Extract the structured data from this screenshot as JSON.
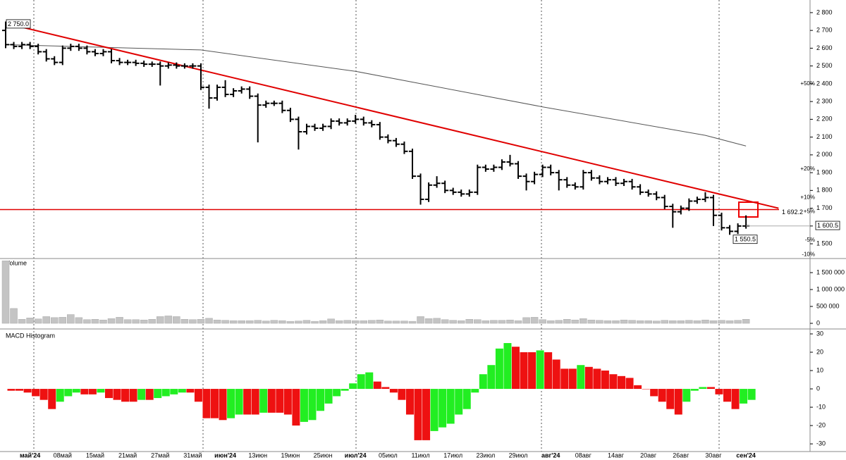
{
  "chart_data": [
    {
      "type": "ohlc",
      "color": "#000000",
      "open": [
        2700,
        2620,
        2610,
        2620,
        2610,
        2580,
        2540,
        2520,
        2600,
        2610,
        2600,
        2580,
        2570,
        2580,
        2530,
        2520,
        2520,
        2515,
        2510,
        2510,
        2500,
        2505,
        2500,
        2500,
        2500,
        2380,
        2320,
        2380,
        2340,
        2360,
        2370,
        2330,
        2280,
        2290,
        2290,
        2250,
        2200,
        2130,
        2160,
        2150,
        2160,
        2190,
        2180,
        2190,
        2200,
        2180,
        2170,
        2100,
        2080,
        2060,
        2020,
        1880,
        1750,
        1830,
        1840,
        1800,
        1790,
        1780,
        1790,
        1930,
        1920,
        1930,
        1960,
        1950,
        1880,
        1850,
        1890,
        1930,
        1900,
        1860,
        1830,
        1820,
        1900,
        1870,
        1850,
        1860,
        1840,
        1850,
        1820,
        1790,
        1780,
        1760,
        1710,
        1680,
        1700,
        1740,
        1750,
        1760,
        1660,
        1590,
        1570,
        1600
      ],
      "high": [
        2750,
        2635,
        2635,
        2635,
        2625,
        2595,
        2555,
        2615,
        2625,
        2625,
        2615,
        2595,
        2595,
        2595,
        2545,
        2535,
        2535,
        2530,
        2525,
        2525,
        2520,
        2520,
        2515,
        2515,
        2515,
        2395,
        2395,
        2420,
        2375,
        2385,
        2385,
        2345,
        2305,
        2305,
        2305,
        2265,
        2215,
        2175,
        2175,
        2175,
        2205,
        2205,
        2205,
        2225,
        2215,
        2195,
        2185,
        2115,
        2095,
        2075,
        2035,
        1895,
        1845,
        1880,
        1855,
        1815,
        1805,
        1805,
        1945,
        1945,
        1945,
        1975,
        2000,
        1965,
        1895,
        1905,
        1945,
        1945,
        1915,
        1875,
        1845,
        1915,
        1915,
        1885,
        1875,
        1875,
        1865,
        1865,
        1835,
        1805,
        1795,
        1775,
        1725,
        1715,
        1755,
        1765,
        1790,
        1775,
        1675,
        1605,
        1615,
        1660
      ],
      "low": [
        2600,
        2595,
        2595,
        2595,
        2565,
        2525,
        2505,
        2505,
        2585,
        2585,
        2565,
        2555,
        2555,
        2515,
        2505,
        2505,
        2500,
        2495,
        2495,
        2390,
        2485,
        2485,
        2485,
        2485,
        2365,
        2260,
        2305,
        2325,
        2325,
        2345,
        2315,
        2070,
        2265,
        2275,
        2235,
        2185,
        2030,
        2115,
        2135,
        2135,
        2145,
        2165,
        2165,
        2175,
        2165,
        2155,
        2085,
        2065,
        2045,
        2005,
        1865,
        1720,
        1735,
        1815,
        1785,
        1775,
        1765,
        1765,
        1775,
        1905,
        1905,
        1915,
        1935,
        1865,
        1800,
        1835,
        1875,
        1885,
        1800,
        1815,
        1805,
        1805,
        1855,
        1835,
        1835,
        1825,
        1825,
        1805,
        1775,
        1765,
        1745,
        1695,
        1590,
        1665,
        1685,
        1725,
        1735,
        1600,
        1575,
        1550.5,
        1555,
        1585
      ],
      "close": [
        2620,
        2610,
        2620,
        2610,
        2580,
        2540,
        2520,
        2600,
        2610,
        2600,
        2580,
        2570,
        2580,
        2530,
        2520,
        2520,
        2515,
        2510,
        2510,
        2500,
        2505,
        2500,
        2500,
        2500,
        2380,
        2320,
        2380,
        2340,
        2360,
        2370,
        2330,
        2280,
        2290,
        2290,
        2250,
        2200,
        2130,
        2160,
        2150,
        2160,
        2190,
        2180,
        2190,
        2200,
        2180,
        2170,
        2100,
        2080,
        2060,
        2020,
        1880,
        1750,
        1830,
        1840,
        1800,
        1790,
        1780,
        1790,
        1930,
        1920,
        1930,
        1960,
        1950,
        1880,
        1850,
        1890,
        1930,
        1900,
        1860,
        1830,
        1820,
        1900,
        1870,
        1850,
        1860,
        1840,
        1850,
        1820,
        1790,
        1780,
        1760,
        1710,
        1680,
        1700,
        1740,
        1750,
        1760,
        1660,
        1590,
        1570,
        1600,
        1600.5
      ],
      "moving_average": {
        "color": "#555555",
        "x": [
          0,
          24,
          43,
          66,
          86,
          91
        ],
        "values": [
          2620,
          2590,
          2470,
          2270,
          2110,
          2050
        ]
      },
      "trendline": {
        "color": "#e00000",
        "x": [
          0,
          95
        ],
        "values": [
          2740,
          1700
        ]
      },
      "level_line": {
        "color": "#e00000",
        "value": 1692.2,
        "label": "1 692.2"
      },
      "max_label": {
        "value": 2750,
        "label": "2 750.0"
      },
      "min_label": {
        "value": 1550.5,
        "label": "1 550.5"
      },
      "last_label": {
        "value": 1600.5,
        "label": "1 600.5"
      },
      "percent_levels": [
        {
          "value": 2400,
          "label": "+50%",
          "color": "#2a9d2a"
        },
        {
          "value": 1920,
          "label": "+20%",
          "color": "#2a9d2a"
        },
        {
          "value": 1760,
          "label": "+10%",
          "color": "#2a9d2a"
        },
        {
          "value": 1680,
          "label": "+5%",
          "color": "#2a9d2a"
        },
        {
          "value": 1520,
          "label": "-5%",
          "color": "#e00000"
        },
        {
          "value": 1440,
          "label": "-10%",
          "color": "#e00000"
        }
      ],
      "ylim": [
        1421,
        2871
      ],
      "yticks": [
        {
          "value": 2800,
          "label": "2 800"
        },
        {
          "value": 2700,
          "label": "2 700"
        },
        {
          "value": 2600,
          "label": "2 600"
        },
        {
          "value": 2500,
          "label": "2 500"
        },
        {
          "value": 2400,
          "label": "2 400"
        },
        {
          "value": 2300,
          "label": "2 300"
        },
        {
          "value": 2200,
          "label": "2 200"
        },
        {
          "value": 2100,
          "label": "2 100"
        },
        {
          "value": 2000,
          "label": "2 000"
        },
        {
          "value": 1900,
          "label": "1 900"
        },
        {
          "value": 1800,
          "label": "1 800"
        },
        {
          "value": 1700,
          "label": "1 700"
        },
        {
          "value": 1600,
          "label": "1 600"
        },
        {
          "value": 1500,
          "label": "1 500"
        }
      ],
      "xticks": [
        {
          "value": 3,
          "label": "май'24"
        },
        {
          "value": 7,
          "label": "08май"
        },
        {
          "value": 11,
          "label": "15май"
        },
        {
          "value": 15,
          "label": "21май"
        },
        {
          "value": 19,
          "label": "27май"
        },
        {
          "value": 23,
          "label": "31май"
        },
        {
          "value": 27,
          "label": "июн'24"
        },
        {
          "value": 31,
          "label": "13июн"
        },
        {
          "value": 35,
          "label": "19июн"
        },
        {
          "value": 39,
          "label": "25июн"
        },
        {
          "value": 43,
          "label": "июл'24"
        },
        {
          "value": 47,
          "label": "05июл"
        },
        {
          "value": 51,
          "label": "11июл"
        },
        {
          "value": 55,
          "label": "17июл"
        },
        {
          "value": 59,
          "label": "23июл"
        },
        {
          "value": 63,
          "label": "29июл"
        },
        {
          "value": 67,
          "label": "авг'24"
        },
        {
          "value": 71,
          "label": "08авг"
        },
        {
          "value": 75,
          "label": "14авг"
        },
        {
          "value": 79,
          "label": "20авг"
        },
        {
          "value": 83,
          "label": "26авг"
        },
        {
          "value": 87,
          "label": "30авг"
        },
        {
          "value": 91,
          "label": "сен'24"
        }
      ]
    },
    {
      "type": "bar",
      "title": "Volume",
      "color": "#c4c4c4",
      "values": [
        1850000,
        440000,
        120000,
        160000,
        130000,
        200000,
        170000,
        180000,
        260000,
        170000,
        110000,
        120000,
        100000,
        140000,
        180000,
        110000,
        110000,
        100000,
        120000,
        200000,
        220000,
        200000,
        120000,
        110000,
        120000,
        150000,
        100000,
        90000,
        80000,
        80000,
        80000,
        90000,
        70000,
        90000,
        80000,
        60000,
        70000,
        90000,
        60000,
        80000,
        130000,
        80000,
        90000,
        80000,
        80000,
        90000,
        100000,
        70000,
        70000,
        70000,
        60000,
        200000,
        140000,
        150000,
        110000,
        90000,
        80000,
        120000,
        110000,
        80000,
        90000,
        90000,
        100000,
        80000,
        170000,
        180000,
        110000,
        80000,
        90000,
        120000,
        100000,
        140000,
        100000,
        90000,
        80000,
        80000,
        100000,
        90000,
        80000,
        80000,
        70000,
        90000,
        80000,
        80000,
        90000,
        80000,
        100000,
        80000,
        90000,
        80000,
        90000,
        120000
      ],
      "ylim": [
        -145800,
        1895800
      ],
      "yticks": [
        0,
        {
          "value": 500000,
          "label": "500 000"
        },
        {
          "value": 1000000,
          "label": "1 000 000"
        },
        {
          "value": 1500000,
          "label": "1 500 000"
        }
      ]
    },
    {
      "type": "histogram",
      "title": "MACD Histogram",
      "up_color": "#22ee22",
      "down_color": "#ee1111",
      "values": [
        -1,
        -1,
        -2,
        -4,
        -6,
        -11,
        -7,
        -4,
        -2,
        -3,
        -3,
        -2,
        -5,
        -6,
        -7,
        -7,
        -6,
        -6,
        -5,
        -4,
        -3,
        -2,
        -2,
        -7,
        -16,
        -16,
        -17,
        -16,
        -14,
        -14,
        -14,
        -13,
        -13,
        -13,
        -14,
        -20,
        -18,
        -17,
        -12,
        -8,
        -4,
        -1,
        3,
        8,
        9,
        4,
        1,
        -2,
        -6,
        -14,
        -28,
        -28,
        -23,
        -21,
        -19,
        -14,
        -11,
        -2,
        8,
        13,
        22,
        25,
        23,
        20,
        20,
        21,
        20,
        16,
        11,
        11,
        13,
        12,
        11,
        10,
        8,
        7,
        6,
        2,
        0,
        -4,
        -7,
        -11,
        -14,
        -7,
        -1,
        1,
        1,
        -3,
        -7,
        -11,
        -8,
        -6
      ],
      "ylim": [
        -33.8,
        32.3
      ],
      "yticks": [
        30,
        20,
        10,
        0,
        -10,
        -20,
        -30
      ]
    }
  ]
}
